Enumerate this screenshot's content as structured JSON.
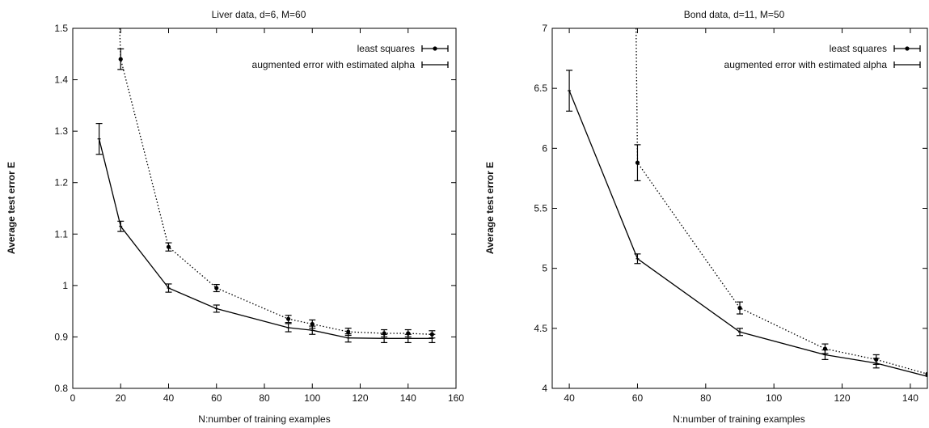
{
  "chart_data": [
    {
      "type": "line",
      "title": "Liver data, d=6, M=60",
      "xlabel": "N:number of training examples",
      "ylabel": "Average test error E",
      "xlim": [
        0,
        160
      ],
      "ylim": [
        0.8,
        1.5
      ],
      "xticks": [
        "0",
        "20",
        "40",
        "60",
        "80",
        "100",
        "120",
        "140",
        "160"
      ],
      "yticks": [
        "0.8",
        "0.9",
        "1",
        "1.1",
        "1.2",
        "1.3",
        "1.4",
        "1.5"
      ],
      "legend_position": "top-right",
      "series": [
        {
          "name": "least squares",
          "style": "dotted",
          "x": [
            20,
            40,
            60,
            90,
            100,
            115,
            130,
            140,
            150
          ],
          "y": [
            1.44,
            1.075,
            0.995,
            0.935,
            0.925,
            0.91,
            0.907,
            0.907,
            0.905
          ],
          "err": [
            0.02,
            0.008,
            0.007,
            0.007,
            0.008,
            0.007,
            0.007,
            0.007,
            0.007
          ],
          "extends_above": true
        },
        {
          "name": "augmented error with estimated alpha",
          "style": "solid",
          "x": [
            11,
            20,
            40,
            60,
            90,
            100,
            115,
            130,
            140,
            150
          ],
          "y": [
            1.285,
            1.115,
            0.995,
            0.955,
            0.918,
            0.913,
            0.898,
            0.897,
            0.897,
            0.897
          ],
          "err": [
            0.03,
            0.01,
            0.008,
            0.007,
            0.008,
            0.008,
            0.008,
            0.008,
            0.008,
            0.008
          ]
        }
      ]
    },
    {
      "type": "line",
      "title": "Bond data, d=11, M=50",
      "xlabel": "N:number of training examples",
      "ylabel": "Average test error E",
      "xlim": [
        35,
        145
      ],
      "ylim": [
        4,
        7
      ],
      "xticks": [
        "40",
        "60",
        "80",
        "100",
        "120",
        "140"
      ],
      "xtick_values": [
        40,
        60,
        80,
        100,
        120,
        140
      ],
      "yticks": [
        "4",
        "4.5",
        "5",
        "5.5",
        "6",
        "6.5",
        "7"
      ],
      "legend_position": "top-right",
      "series": [
        {
          "name": "least squares",
          "style": "dotted",
          "x": [
            60,
            90,
            115,
            130,
            145
          ],
          "y": [
            5.88,
            4.67,
            4.33,
            4.24,
            4.12
          ],
          "err": [
            0.15,
            0.05,
            0.04,
            0.04,
            0
          ],
          "extends_above": true
        },
        {
          "name": "augmented error with estimated alpha",
          "style": "solid",
          "x": [
            40,
            60,
            90,
            115,
            130,
            145
          ],
          "y": [
            6.48,
            5.08,
            4.47,
            4.28,
            4.21,
            4.1
          ],
          "err": [
            0.17,
            0.04,
            0.03,
            0.04,
            0.04,
            0
          ]
        }
      ]
    }
  ]
}
